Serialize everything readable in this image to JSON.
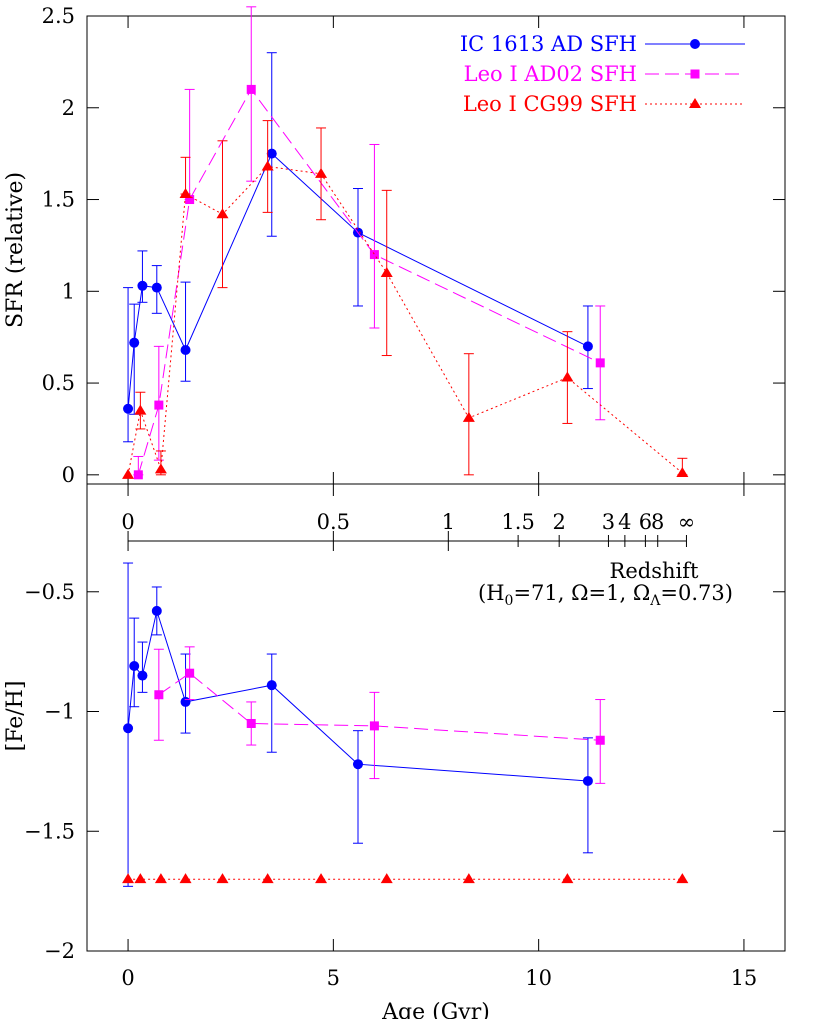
{
  "chart_data": [
    {
      "type": "line",
      "panel": "top",
      "ylabel": "SFR (relative)",
      "xlim": [
        -1,
        16
      ],
      "ylim": [
        -0.05,
        2.5
      ],
      "yticks": [
        0,
        0.5,
        1,
        1.5,
        2,
        2.5
      ],
      "ytick_labels": [
        "0",
        "0.5",
        "1",
        "1.5",
        "2",
        "2.5"
      ],
      "legend_position": "top-right",
      "series": [
        {
          "name": "IC 1613 AD SFH",
          "color": "#0000ff",
          "marker": "circle",
          "linestyle": "solid",
          "x": [
            0,
            0.15,
            0.35,
            0.7,
            1.4,
            3.5,
            5.6,
            11.2
          ],
          "y": [
            0.36,
            0.72,
            1.03,
            1.02,
            0.68,
            1.75,
            1.32,
            0.7
          ],
          "err_low": [
            0.18,
            0.39,
            0.09,
            0.14,
            0.17,
            0.45,
            0.4,
            0.23
          ],
          "err_high": [
            0.66,
            0.21,
            0.19,
            0.12,
            0.37,
            0.55,
            0.24,
            0.22
          ]
        },
        {
          "name": "Leo I AD02 SFH",
          "color": "#ff00ff",
          "marker": "square",
          "linestyle": "dashed",
          "x": [
            0.25,
            0.75,
            1.5,
            3.0,
            6.0,
            11.5
          ],
          "y": [
            0.0,
            0.38,
            1.5,
            2.1,
            1.2,
            0.61
          ],
          "err_low": [
            0.0,
            0.3,
            0.0,
            0.5,
            0.4,
            0.31
          ],
          "err_high": [
            0.1,
            0.32,
            0.6,
            0.45,
            0.6,
            0.31
          ]
        },
        {
          "name": "Leo I CG99 SFH",
          "color": "#ff0000",
          "marker": "triangle",
          "linestyle": "dotted",
          "x": [
            0.0,
            0.3,
            0.8,
            1.4,
            2.3,
            3.4,
            4.7,
            6.3,
            8.3,
            10.7,
            13.5
          ],
          "y": [
            0.0,
            0.35,
            0.03,
            1.53,
            1.42,
            1.68,
            1.64,
            1.1,
            0.31,
            0.53,
            0.01
          ],
          "err_low": [
            0.0,
            0.1,
            0.03,
            0.0,
            0.4,
            0.25,
            0.25,
            0.45,
            0.31,
            0.25,
            0.01
          ],
          "err_high": [
            0.0,
            0.1,
            0.1,
            0.2,
            0.4,
            0.25,
            0.25,
            0.45,
            0.35,
            0.25,
            0.08
          ]
        }
      ]
    },
    {
      "type": "line",
      "panel": "bottom",
      "xlabel": "Age (Gyr)",
      "ylabel": "[Fe/H]",
      "xlim": [
        -1,
        16
      ],
      "ylim": [
        -2,
        -0.05
      ],
      "xticks": [
        0,
        5,
        10,
        15
      ],
      "xtick_labels": [
        "0",
        "5",
        "10",
        "15"
      ],
      "yticks": [
        -2,
        -1.5,
        -1,
        -0.5
      ],
      "ytick_labels": [
        "−2",
        "−1.5",
        "−1",
        "−0.5"
      ],
      "series": [
        {
          "name": "IC 1613 AD SFH",
          "color": "#0000ff",
          "marker": "circle",
          "linestyle": "solid",
          "x": [
            0,
            0.15,
            0.35,
            0.7,
            1.4,
            3.5,
            5.6,
            11.2
          ],
          "y": [
            -1.07,
            -0.81,
            -0.85,
            -0.58,
            -0.96,
            -0.89,
            -1.22,
            -1.29
          ],
          "err_low": [
            0.66,
            0.17,
            0.07,
            0.1,
            0.13,
            0.28,
            0.33,
            0.3
          ],
          "err_high": [
            0.69,
            0.2,
            0.14,
            0.1,
            0.2,
            0.13,
            0.14,
            0.18
          ]
        },
        {
          "name": "Leo I AD02 SFH",
          "color": "#ff00ff",
          "marker": "square",
          "linestyle": "dashed",
          "x": [
            0.75,
            1.5,
            3.0,
            6.0,
            11.5
          ],
          "y": [
            -0.93,
            -0.84,
            -1.05,
            -1.06,
            -1.12
          ],
          "err_low": [
            0.19,
            0.11,
            0.09,
            0.22,
            0.18
          ],
          "err_high": [
            0.19,
            0.11,
            0.09,
            0.14,
            0.17
          ]
        },
        {
          "name": "Leo I CG99 SFH",
          "color": "#ff0000",
          "marker": "triangle",
          "linestyle": "dotted",
          "x": [
            0.0,
            0.3,
            0.8,
            1.4,
            2.3,
            3.4,
            4.7,
            6.3,
            8.3,
            10.7,
            13.5
          ],
          "y": [
            -1.7,
            -1.7,
            -1.7,
            -1.7,
            -1.7,
            -1.7,
            -1.7,
            -1.7,
            -1.7,
            -1.7,
            -1.7
          ],
          "err_low": [
            0,
            0,
            0,
            0,
            0,
            0,
            0,
            0,
            0,
            0,
            0
          ],
          "err_high": [
            0,
            0,
            0,
            0,
            0,
            0,
            0,
            0,
            0,
            0,
            0
          ]
        }
      ]
    }
  ],
  "redshift_axis": {
    "title": "Redshift",
    "cosmology_prefix": "(H",
    "cosmology_h0_sub": "0",
    "cosmology_middle": "=71, Ω=1, Ω",
    "cosmology_lambda_sub": "Λ",
    "cosmology_suffix": "=0.73)",
    "major_ages": [
      0,
      5.0,
      7.8
    ],
    "major_labels": [
      "0",
      "0.5",
      "1"
    ],
    "minor_ages": [
      9.5,
      10.5,
      11.7,
      12.1,
      12.6,
      12.9,
      13.6
    ],
    "minor_labels": [
      "1.5",
      "2",
      "3",
      "4",
      "6",
      "8",
      "∞"
    ]
  }
}
